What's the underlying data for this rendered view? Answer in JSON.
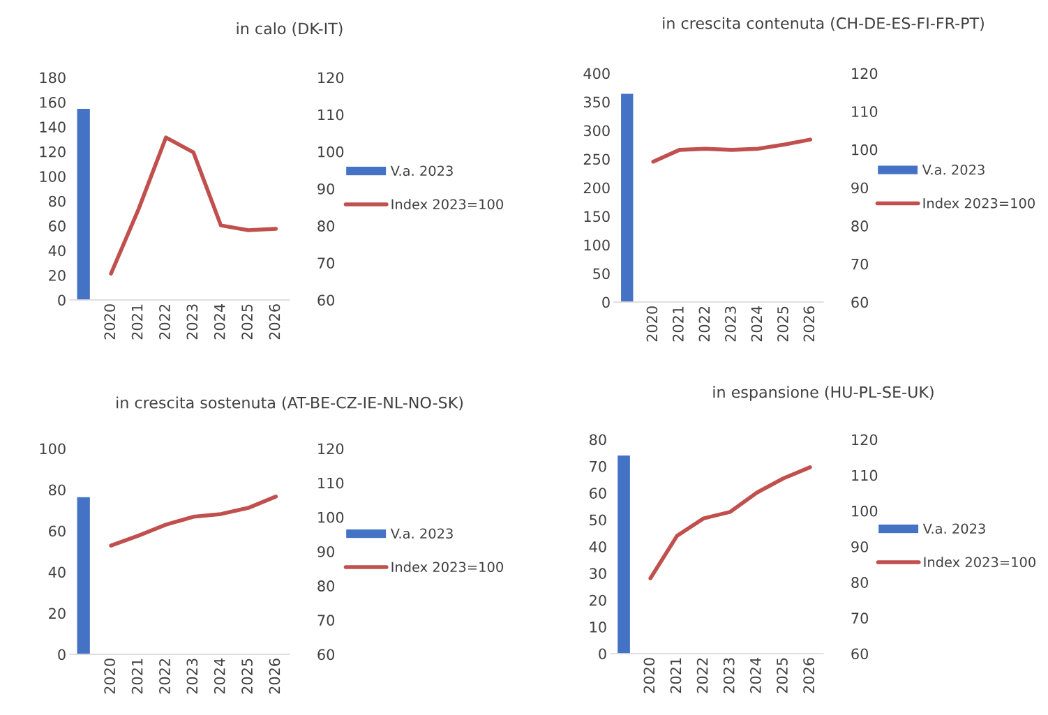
{
  "chart_data": [
    {
      "type": "bar",
      "title": "in calo (DK-IT)",
      "categories": [
        null,
        "2020",
        "2021",
        "2022",
        "2023",
        "2024",
        "2025",
        "2026"
      ],
      "ylim": [
        0,
        180
      ],
      "yticks": [
        0,
        20,
        40,
        60,
        80,
        100,
        120,
        140,
        160,
        180
      ],
      "y2lim": [
        60,
        120
      ],
      "y2ticks": [
        60,
        70,
        80,
        90,
        100,
        110,
        120
      ],
      "legend": "right",
      "grid": false,
      "series": [
        {
          "name": "V.a. 2023",
          "color": "#4472c4",
          "values": [
            155,
            null,
            null,
            null,
            null,
            null,
            null,
            null
          ]
        },
        {
          "name": "Index 2023=100",
          "type": "line",
          "axis": "y2",
          "color": "#c0504d",
          "values": [
            null,
            67.1,
            84.4,
            103.8,
            99.8,
            80.1,
            78.8,
            79.2
          ]
        }
      ]
    },
    {
      "type": "bar",
      "title": "in crescita contenuta (CH-DE-ES-FI-FR-PT)",
      "categories": [
        null,
        "2020",
        "2021",
        "2022",
        "2023",
        "2024",
        "2025",
        "2026"
      ],
      "ylim": [
        0,
        400
      ],
      "yticks": [
        0,
        50,
        100,
        150,
        200,
        250,
        300,
        350,
        400
      ],
      "y2lim": [
        60,
        120
      ],
      "y2ticks": [
        60,
        70,
        80,
        90,
        100,
        110,
        120
      ],
      "legend": "right",
      "grid": false,
      "series": [
        {
          "name": "V.a. 2023",
          "color": "#4472c4",
          "values": [
            365,
            null,
            null,
            null,
            null,
            null,
            null,
            null
          ]
        },
        {
          "name": "Index 2023=100",
          "type": "line",
          "axis": "y2",
          "color": "#c0504d",
          "values": [
            null,
            96.8,
            99.9,
            100.2,
            99.9,
            100.2,
            101.3,
            102.6
          ]
        }
      ]
    },
    {
      "type": "bar",
      "title": "in crescita sostenuta (AT-BE-CZ-IE-NL-NO-SK)",
      "categories": [
        null,
        "2020",
        "2021",
        "2022",
        "2023",
        "2024",
        "2025",
        "2026"
      ],
      "ylim": [
        0,
        100
      ],
      "yticks": [
        0,
        20,
        40,
        60,
        80,
        100
      ],
      "y2lim": [
        60,
        120
      ],
      "y2ticks": [
        60,
        70,
        80,
        90,
        100,
        110,
        120
      ],
      "legend": "right",
      "grid": false,
      "series": [
        {
          "name": "V.a. 2023",
          "color": "#4472c4",
          "values": [
            76.6,
            null,
            null,
            null,
            null,
            null,
            null,
            null
          ]
        },
        {
          "name": "Index 2023=100",
          "type": "line",
          "axis": "y2",
          "color": "#c0504d",
          "values": [
            null,
            91.7,
            94.6,
            97.8,
            100.1,
            100.9,
            102.7,
            106.0
          ]
        }
      ]
    },
    {
      "type": "bar",
      "title": "in espansione (HU-PL-SE-UK)",
      "categories": [
        null,
        "2020",
        "2021",
        "2022",
        "2023",
        "2024",
        "2025",
        "2026"
      ],
      "ylim": [
        0,
        80
      ],
      "yticks": [
        0,
        10,
        20,
        30,
        40,
        50,
        60,
        70,
        80
      ],
      "y2lim": [
        60,
        120
      ],
      "y2ticks": [
        60,
        70,
        80,
        90,
        100,
        110,
        120
      ],
      "legend": "right",
      "grid": false,
      "series": [
        {
          "name": "V.a. 2023",
          "color": "#4472c4",
          "values": [
            74.2,
            null,
            null,
            null,
            null,
            null,
            null,
            null
          ]
        },
        {
          "name": "Index 2023=100",
          "type": "line",
          "axis": "y2",
          "color": "#c0504d",
          "values": [
            null,
            81.1,
            93.0,
            97.9,
            99.7,
            105.1,
            109.1,
            112.2
          ]
        }
      ]
    }
  ]
}
